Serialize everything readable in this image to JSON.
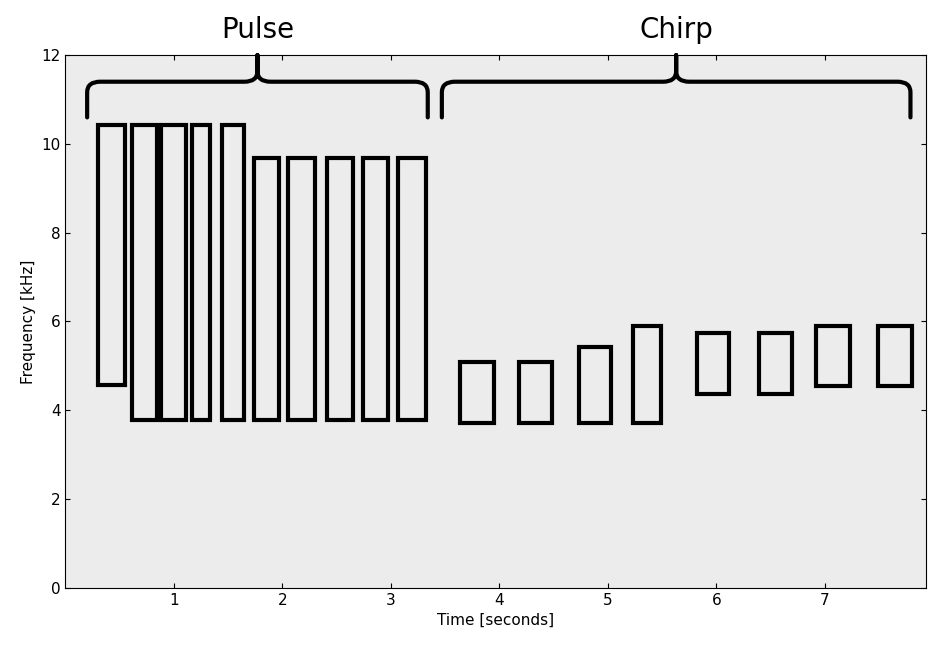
{
  "chart_data": {
    "type": "spectrogram",
    "xlabel": "Time [seconds]",
    "ylabel": "Frequency [kHz]",
    "xlim": [
      0,
      7.93
    ],
    "xticks": [
      1,
      2,
      3,
      4,
      5,
      6,
      7
    ],
    "ylim": [
      0,
      12
    ],
    "yticks": [
      0,
      2,
      4,
      6,
      8,
      10,
      12
    ],
    "color": "#000000",
    "annotations": [
      {
        "text": "Pulse",
        "x_range": [
          0.2,
          3.34
        ]
      },
      {
        "text": "Chirp",
        "x_range": [
          3.47,
          7.79
        ]
      }
    ],
    "boxes": [
      {
        "t": [
          0.3,
          0.55
        ],
        "f": [
          4.57,
          10.43
        ]
      },
      {
        "t": [
          0.61,
          0.84
        ],
        "f": [
          3.78,
          10.43
        ]
      },
      {
        "t": [
          0.88,
          1.11
        ],
        "f": [
          3.78,
          10.43
        ]
      },
      {
        "t": [
          1.17,
          1.33
        ],
        "f": [
          3.78,
          10.43
        ]
      },
      {
        "t": [
          1.44,
          1.65
        ],
        "f": [
          3.78,
          10.43
        ]
      },
      {
        "t": [
          1.74,
          1.97
        ],
        "f": [
          3.78,
          9.68
        ]
      },
      {
        "t": [
          2.05,
          2.3
        ],
        "f": [
          3.78,
          9.68
        ]
      },
      {
        "t": [
          2.41,
          2.65
        ],
        "f": [
          3.78,
          9.68
        ]
      },
      {
        "t": [
          2.74,
          2.97
        ],
        "f": [
          3.78,
          9.68
        ]
      },
      {
        "t": [
          3.07,
          3.32
        ],
        "f": [
          3.78,
          9.68
        ]
      },
      {
        "t": [
          3.64,
          3.95
        ],
        "f": [
          3.72,
          5.09
        ]
      },
      {
        "t": [
          4.18,
          4.49
        ],
        "f": [
          3.72,
          5.09
        ]
      },
      {
        "t": [
          4.73,
          5.03
        ],
        "f": [
          3.72,
          5.43
        ]
      },
      {
        "t": [
          5.23,
          5.49
        ],
        "f": [
          3.72,
          5.9
        ]
      },
      {
        "t": [
          5.82,
          6.12
        ],
        "f": [
          4.37,
          5.74
        ]
      },
      {
        "t": [
          6.39,
          6.7
        ],
        "f": [
          4.37,
          5.74
        ]
      },
      {
        "t": [
          6.92,
          7.23
        ],
        "f": [
          4.55,
          5.9
        ]
      },
      {
        "t": [
          7.49,
          7.8
        ],
        "f": [
          4.55,
          5.9
        ]
      }
    ]
  }
}
